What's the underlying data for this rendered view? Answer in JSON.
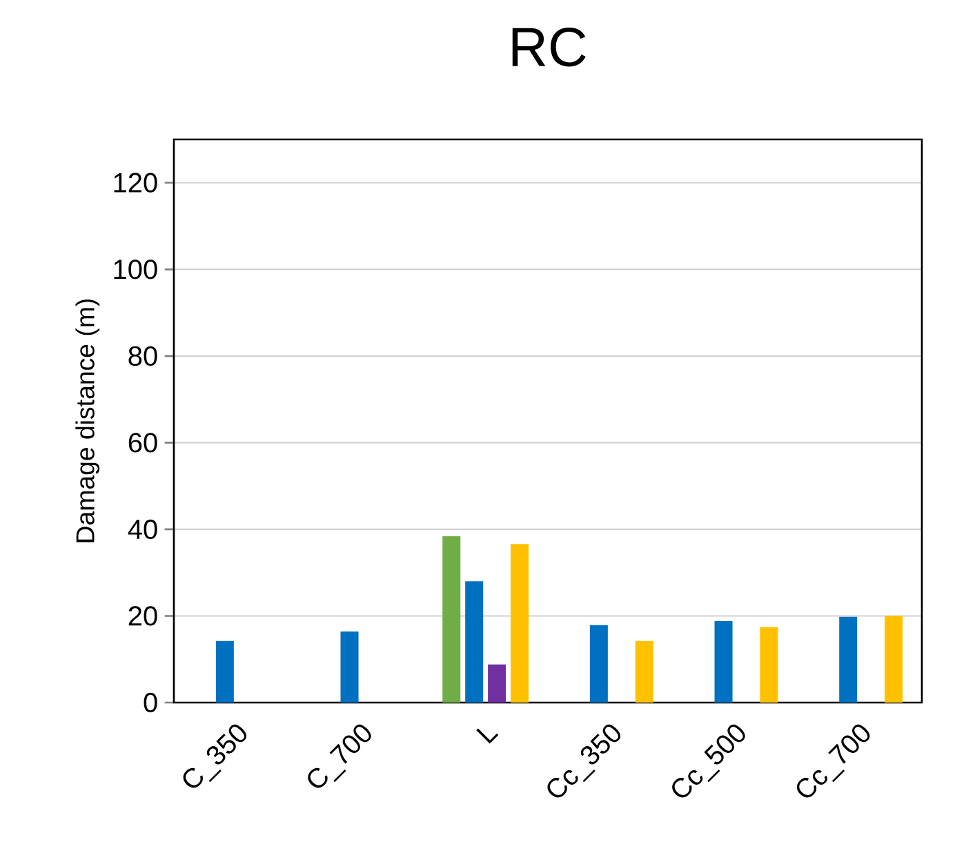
{
  "chart_data": {
    "type": "bar",
    "title": "RC",
    "ylabel": "Damage distance (m)",
    "categories": [
      "C_350",
      "C_700",
      "L",
      "Cc_350",
      "Cc_500",
      "Cc_700"
    ],
    "series": [
      {
        "color": "#70ad47",
        "values": [
          null,
          null,
          38.4,
          null,
          null,
          null
        ]
      },
      {
        "color": "#0070c0",
        "values": [
          14.2,
          16.4,
          28.0,
          17.9,
          18.8,
          19.8
        ]
      },
      {
        "color": "#7030a0",
        "values": [
          null,
          null,
          8.8,
          null,
          null,
          null
        ]
      },
      {
        "color": "#ffc000",
        "values": [
          null,
          null,
          36.6,
          14.2,
          17.4,
          20.0
        ]
      }
    ],
    "ylim": [
      0,
      130
    ],
    "yticks": [
      0,
      20,
      40,
      60,
      80,
      100,
      120
    ],
    "grid": "y"
  }
}
